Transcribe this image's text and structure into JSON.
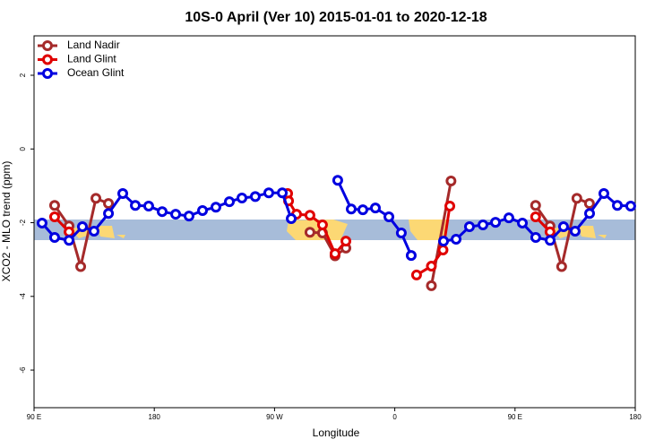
{
  "chart_data": {
    "type": "line",
    "title": "10S-0 April (Ver 10)   2015-01-01 to 2020-12-18",
    "x_label": "Longitude",
    "y_label": "XCO2 - MLO trend (ppm)",
    "xlim": [
      90,
      540
    ],
    "ylim": [
      -7.02,
      3.07
    ],
    "xticks": [
      {
        "value": 90,
        "label": "90 E"
      },
      180,
      {
        "value": 270,
        "label": "90 W"
      },
      {
        "value": 360,
        "label": "0"
      },
      {
        "value": 450,
        "label": "90 E"
      },
      {
        "value": 540,
        "label": "180"
      }
    ],
    "yticks": [
      2,
      0,
      -2,
      -4,
      -6
    ],
    "legend": "top-left",
    "series": [
      {
        "name": "Land Nadir",
        "color": "#a52a2a",
        "x": [
          105.4,
          116.2,
          124.9,
          136.3,
          145.7,
          null,
          296.5,
          305.9,
          315.3,
          323.4,
          null,
          387.4,
          402.1,
          null,
          465.4,
          476.2,
          484.9,
          496.3,
          505.7
        ],
        "values": [
          -1.53,
          -2.09,
          -3.19,
          -1.34,
          -1.48,
          null,
          -2.26,
          -2.28,
          -2.9,
          -2.69,
          null,
          -3.71,
          -0.87,
          null,
          -1.53,
          -2.09,
          -3.19,
          -1.34,
          -1.48
        ]
      },
      {
        "name": "Land Glint",
        "color": "#e00000",
        "x": [
          105.4,
          116.2,
          null,
          279.8,
          280.5,
          286.5,
          296.5,
          305.9,
          315.3,
          323.4,
          null,
          376.3,
          387.4,
          396.1,
          401.2,
          null,
          465.4,
          476.2
        ],
        "values": [
          -1.84,
          -2.25,
          null,
          -1.21,
          -1.41,
          -1.77,
          -1.8,
          -2.06,
          -2.84,
          -2.5,
          null,
          -3.42,
          -3.18,
          -2.74,
          -1.55,
          null,
          -1.84,
          -2.25
        ]
      },
      {
        "name": "Ocean Glint",
        "color": "#0000e0",
        "x": [
          96.0,
          105.4,
          116.2,
          126.2,
          134.9,
          145.7,
          156.4,
          165.8,
          175.8,
          185.9,
          196.0,
          206.0,
          216.1,
          226.1,
          236.2,
          245.6,
          255.6,
          265.7,
          275.8,
          282.5,
          null,
          317.3,
          327.4,
          336.1,
          345.5,
          355.6,
          364.9,
          372.3,
          null,
          396.5,
          405.9,
          415.9,
          426.0,
          435.4,
          445.4,
          455.5,
          465.5,
          476.3,
          486.3,
          495.0,
          505.8,
          516.5,
          526.6,
          536.6
        ],
        "values": [
          -2.01,
          -2.4,
          -2.48,
          -2.11,
          -2.23,
          -1.75,
          -1.21,
          -1.53,
          -1.55,
          -1.7,
          -1.77,
          -1.82,
          -1.67,
          -1.58,
          -1.43,
          -1.33,
          -1.29,
          -1.19,
          -1.19,
          -1.89,
          null,
          -0.85,
          -1.63,
          -1.65,
          -1.6,
          -1.84,
          -2.28,
          -2.89,
          null,
          -2.5,
          -2.45,
          -2.11,
          -2.06,
          -1.99,
          -1.87,
          -2.01,
          -2.4,
          -2.48,
          -2.11,
          -2.23,
          -1.75,
          -1.21,
          -1.53,
          -1.55
        ]
      }
    ]
  }
}
